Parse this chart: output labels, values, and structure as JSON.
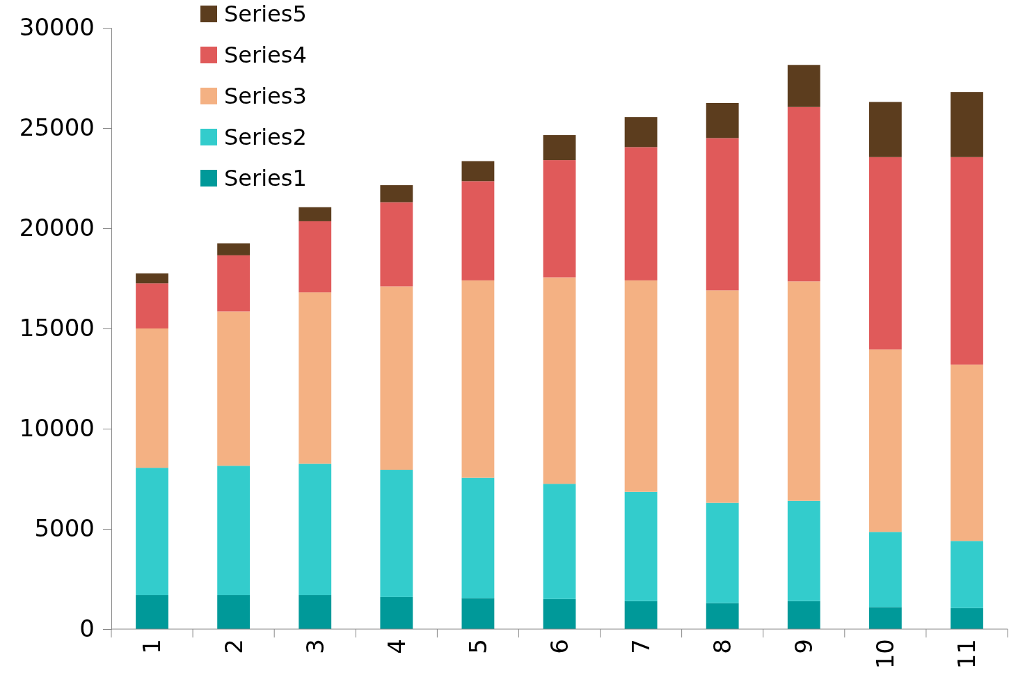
{
  "chart_data": {
    "type": "bar",
    "stacked": true,
    "categories": [
      "1",
      "2",
      "3",
      "4",
      "5",
      "6",
      "7",
      "8",
      "9",
      "10",
      "11"
    ],
    "series": [
      {
        "name": "Series1",
        "color": "#009999",
        "values": [
          1700,
          1700,
          1700,
          1600,
          1550,
          1500,
          1400,
          1300,
          1400,
          1100,
          1050
        ]
      },
      {
        "name": "Series2",
        "color": "#33cccc",
        "values": [
          6350,
          6450,
          6550,
          6350,
          6000,
          5750,
          5450,
          5000,
          5000,
          3750,
          3350
        ]
      },
      {
        "name": "Series3",
        "color": "#f4b183",
        "values": [
          6950,
          7700,
          8550,
          9150,
          9850,
          10300,
          10550,
          10600,
          10950,
          9100,
          8800
        ]
      },
      {
        "name": "Series4",
        "color": "#e05a5a",
        "values": [
          2250,
          2800,
          3550,
          4200,
          4950,
          5850,
          6650,
          7600,
          8700,
          9600,
          10350
        ]
      },
      {
        "name": "Series5",
        "color": "#5c3d1e",
        "values": [
          500,
          600,
          700,
          850,
          1000,
          1250,
          1500,
          1750,
          2100,
          2750,
          3250
        ]
      }
    ],
    "ylim": [
      0,
      30000
    ],
    "yticks": [
      0,
      5000,
      10000,
      15000,
      20000,
      25000,
      30000
    ],
    "grid": false,
    "legend": "top left"
  }
}
